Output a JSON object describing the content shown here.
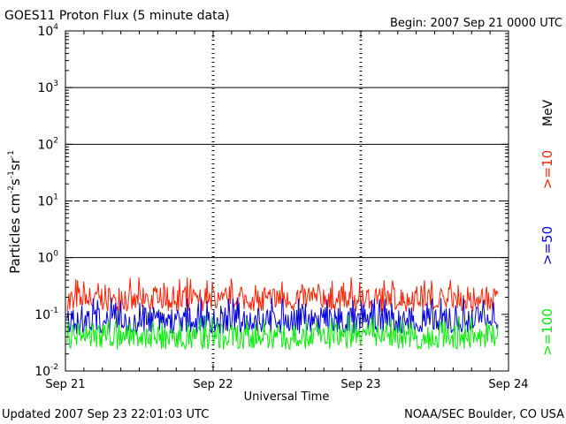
{
  "chart_data": {
    "type": "line",
    "title": "GOES11 Proton Flux (5 minute data)",
    "begin_label": "Begin: 2007 Sep 21 0000 UTC",
    "ylabel": "Particles cm-2s-1sr-1",
    "xlabel": "Universal Time",
    "y_scale": "log",
    "ylim": [
      0.01,
      10000
    ],
    "y_ticks": [
      {
        "value": 0.01,
        "base": "10",
        "exp": "-2"
      },
      {
        "value": 0.1,
        "base": "10",
        "exp": "-1"
      },
      {
        "value": 1,
        "base": "10",
        "exp": "0"
      },
      {
        "value": 10,
        "base": "10",
        "exp": "1"
      },
      {
        "value": 100,
        "base": "10",
        "exp": "2"
      },
      {
        "value": 1000,
        "base": "10",
        "exp": "3"
      },
      {
        "value": 10000,
        "base": "10",
        "exp": "4"
      }
    ],
    "x_ticks": [
      "Sep 21",
      "Sep 22",
      "Sep 23",
      "Sep 24"
    ],
    "xlim": [
      "2007-09-21",
      "2007-09-24"
    ],
    "x_range_days": 3,
    "threshold_lines": [
      {
        "value": 1,
        "style": "solid"
      },
      {
        "value": 10,
        "style": "dashed"
      },
      {
        "value": 100,
        "style": "solid"
      },
      {
        "value": 1000,
        "style": "solid"
      }
    ],
    "unit_label": "MeV",
    "series": [
      {
        "name": ">=10",
        "color": "#ff2000",
        "base": 0.17,
        "noise_low": 0.11,
        "noise_high": 0.45
      },
      {
        "name": ">=50",
        "color": "#0000e0",
        "base": 0.075,
        "noise_low": 0.045,
        "noise_high": 0.2
      },
      {
        "name": ">=100",
        "color": "#00f000",
        "base": 0.04,
        "noise_low": 0.024,
        "noise_high": 0.095
      }
    ]
  },
  "footer": {
    "updated": "Updated 2007 Sep 23 22:01:03 UTC",
    "credit": "NOAA/SEC Boulder, CO USA"
  }
}
